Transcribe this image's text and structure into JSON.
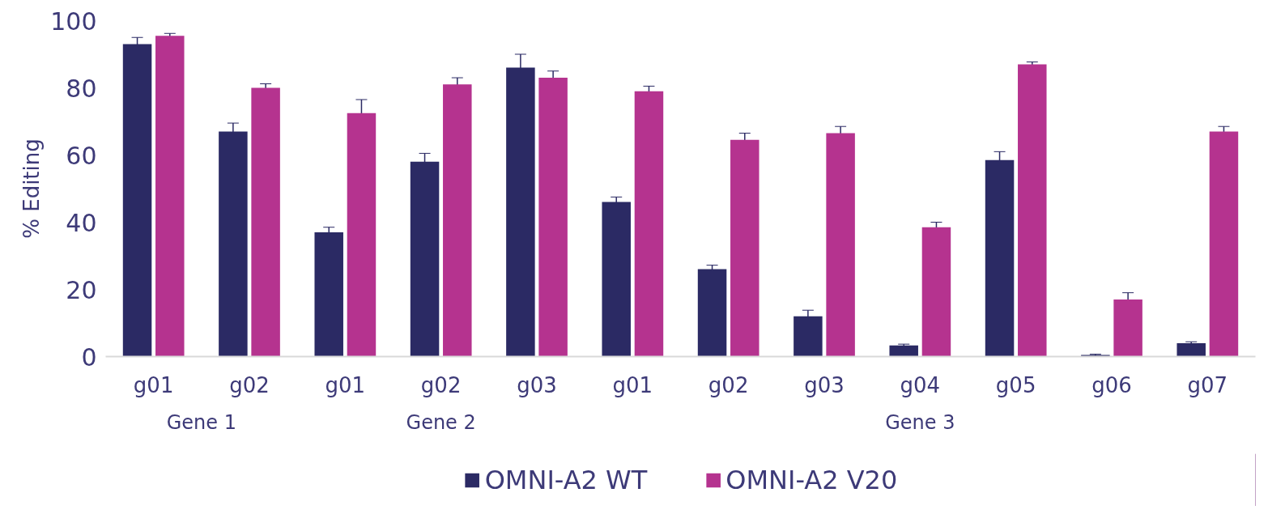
{
  "chart_data": {
    "type": "bar",
    "ylabel": "% Editing",
    "categories": [
      "g01",
      "g02",
      "g01",
      "g02",
      "g03",
      "g01",
      "g02",
      "g03",
      "g04",
      "g05",
      "g06",
      "g07"
    ],
    "series": [
      {
        "name": "OMNI-A2 WT",
        "color": "#2b2a64",
        "values": [
          93,
          67,
          37,
          58,
          86,
          46,
          26,
          12,
          3.3,
          58.5,
          0.5,
          4
        ],
        "errors": [
          2,
          2.5,
          1.5,
          2.5,
          4,
          1.5,
          1.2,
          1.8,
          0.4,
          2.5,
          0.2,
          0.4
        ]
      },
      {
        "name": "OMNI-A2 V20",
        "color": "#b5338f",
        "values": [
          95.5,
          80,
          72.5,
          81,
          83,
          79,
          64.5,
          66.5,
          38.5,
          87,
          17,
          67
        ],
        "errors": [
          0.7,
          1.2,
          4,
          2,
          2,
          1.5,
          2,
          2,
          1.5,
          0.7,
          2,
          1.5
        ]
      }
    ],
    "annotations": [
      "Gene 1",
      "Gene 2",
      "Gene 3"
    ],
    "ylim": [
      0,
      100
    ],
    "yticks": [
      0,
      20,
      40,
      60,
      80,
      100
    ],
    "grid": false,
    "legend": "bottom"
  }
}
